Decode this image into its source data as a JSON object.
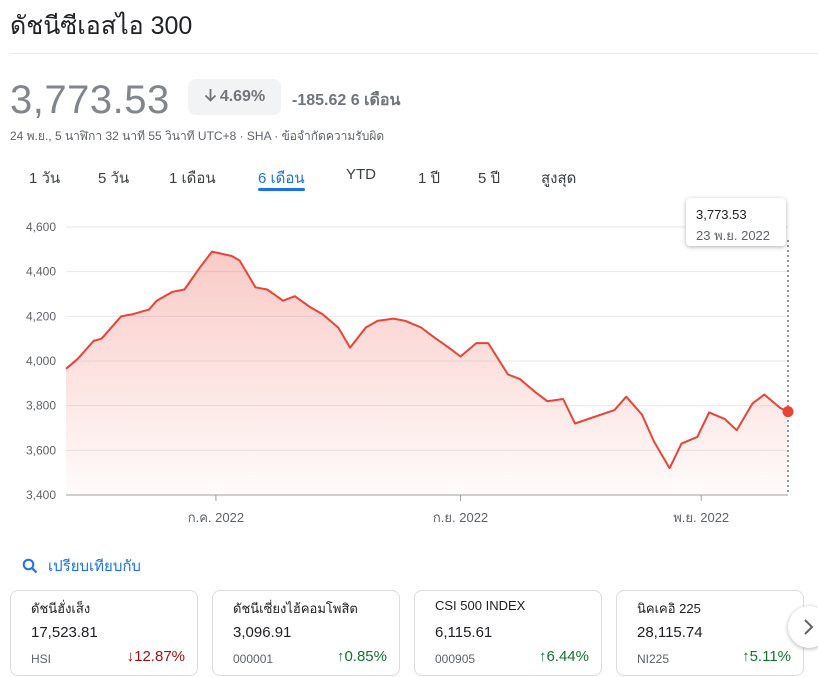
{
  "header": {
    "title": "ดัชนีซีเอสไอ 300"
  },
  "quote": {
    "price": "3,773.53",
    "change_pct": "4.69%",
    "change_abs": "-185.62 6 เดือน",
    "meta": "24 พ.ย., 5 นาฬิกา 32 นาที 55 วินาที UTC+8 · SHA · ข้อจำกัดความรับผิด",
    "direction": "down",
    "line_color": "#ea4335"
  },
  "tabs": [
    "1 วัน",
    "5 วัน",
    "1 เดือน",
    "6 เดือน",
    "YTD",
    "1 ปี",
    "5 ปี",
    "สูงสุด"
  ],
  "active_tab": "6 เดือน",
  "tooltip": {
    "value": "3,773.53",
    "date": "23 พ.ย. 2022"
  },
  "chart_data": {
    "type": "area",
    "title": "",
    "xlabel": "",
    "ylabel": "",
    "ylim": [
      3400,
      4600
    ],
    "yticks": [
      "4,600",
      "4,400",
      "4,200",
      "4,000",
      "3,800",
      "3,600",
      "3,400"
    ],
    "ytick_values": [
      4600,
      4400,
      4200,
      4000,
      3800,
      3600,
      3400
    ],
    "xticks": [
      "ก.ค. 2022",
      "ก.ย. 2022",
      "พ.ย. 2022"
    ],
    "xtick_dates": [
      "2022-07-01",
      "2022-09-01",
      "2022-11-01"
    ],
    "grid": true,
    "series": [
      {
        "x": [
          "2022-05-24",
          "2022-05-27",
          "2022-05-31",
          "2022-06-02",
          "2022-06-07",
          "2022-06-10",
          "2022-06-14",
          "2022-06-16",
          "2022-06-20",
          "2022-06-23",
          "2022-06-27",
          "2022-06-30",
          "2022-07-05",
          "2022-07-07",
          "2022-07-11",
          "2022-07-14",
          "2022-07-18",
          "2022-07-21",
          "2022-07-25",
          "2022-07-28",
          "2022-08-01",
          "2022-08-04",
          "2022-08-08",
          "2022-08-11",
          "2022-08-15",
          "2022-08-18",
          "2022-08-22",
          "2022-08-25",
          "2022-08-29",
          "2022-09-01",
          "2022-09-05",
          "2022-09-08",
          "2022-09-13",
          "2022-09-16",
          "2022-09-20",
          "2022-09-23",
          "2022-09-27",
          "2022-09-30",
          "2022-10-10",
          "2022-10-13",
          "2022-10-17",
          "2022-10-20",
          "2022-10-24",
          "2022-10-27",
          "2022-10-31",
          "2022-11-03",
          "2022-11-07",
          "2022-11-10",
          "2022-11-14",
          "2022-11-17",
          "2022-11-21",
          "2022-11-23"
        ],
        "y": [
          3965,
          4010,
          4090,
          4100,
          4200,
          4210,
          4230,
          4270,
          4310,
          4320,
          4420,
          4490,
          4470,
          4450,
          4330,
          4320,
          4270,
          4290,
          4240,
          4210,
          4150,
          4060,
          4150,
          4180,
          4190,
          4180,
          4150,
          4110,
          4060,
          4020,
          4080,
          4080,
          3940,
          3920,
          3860,
          3820,
          3830,
          3720,
          3780,
          3840,
          3760,
          3640,
          3520,
          3630,
          3660,
          3770,
          3740,
          3690,
          3810,
          3850,
          3790,
          3773.53
        ]
      }
    ]
  },
  "compare": {
    "label": "เปรียบเทียบกับ"
  },
  "cards": [
    {
      "name": "ดัชนีฮั่งเส็ง",
      "value": "17,523.81",
      "symbol": "HSI",
      "change": "12.87%",
      "direction": "down"
    },
    {
      "name": "ดัชนีเซี่ยงไฮ้คอมโพสิต",
      "value": "3,096.91",
      "symbol": "000001",
      "change": "0.85%",
      "direction": "up"
    },
    {
      "name": "CSI 500 INDEX",
      "value": "6,115.61",
      "symbol": "000905",
      "change": "6.44%",
      "direction": "up"
    },
    {
      "name": "นิคเคอิ 225",
      "value": "28,115.74",
      "symbol": "NI225",
      "change": "5.11%",
      "direction": "up"
    }
  ]
}
